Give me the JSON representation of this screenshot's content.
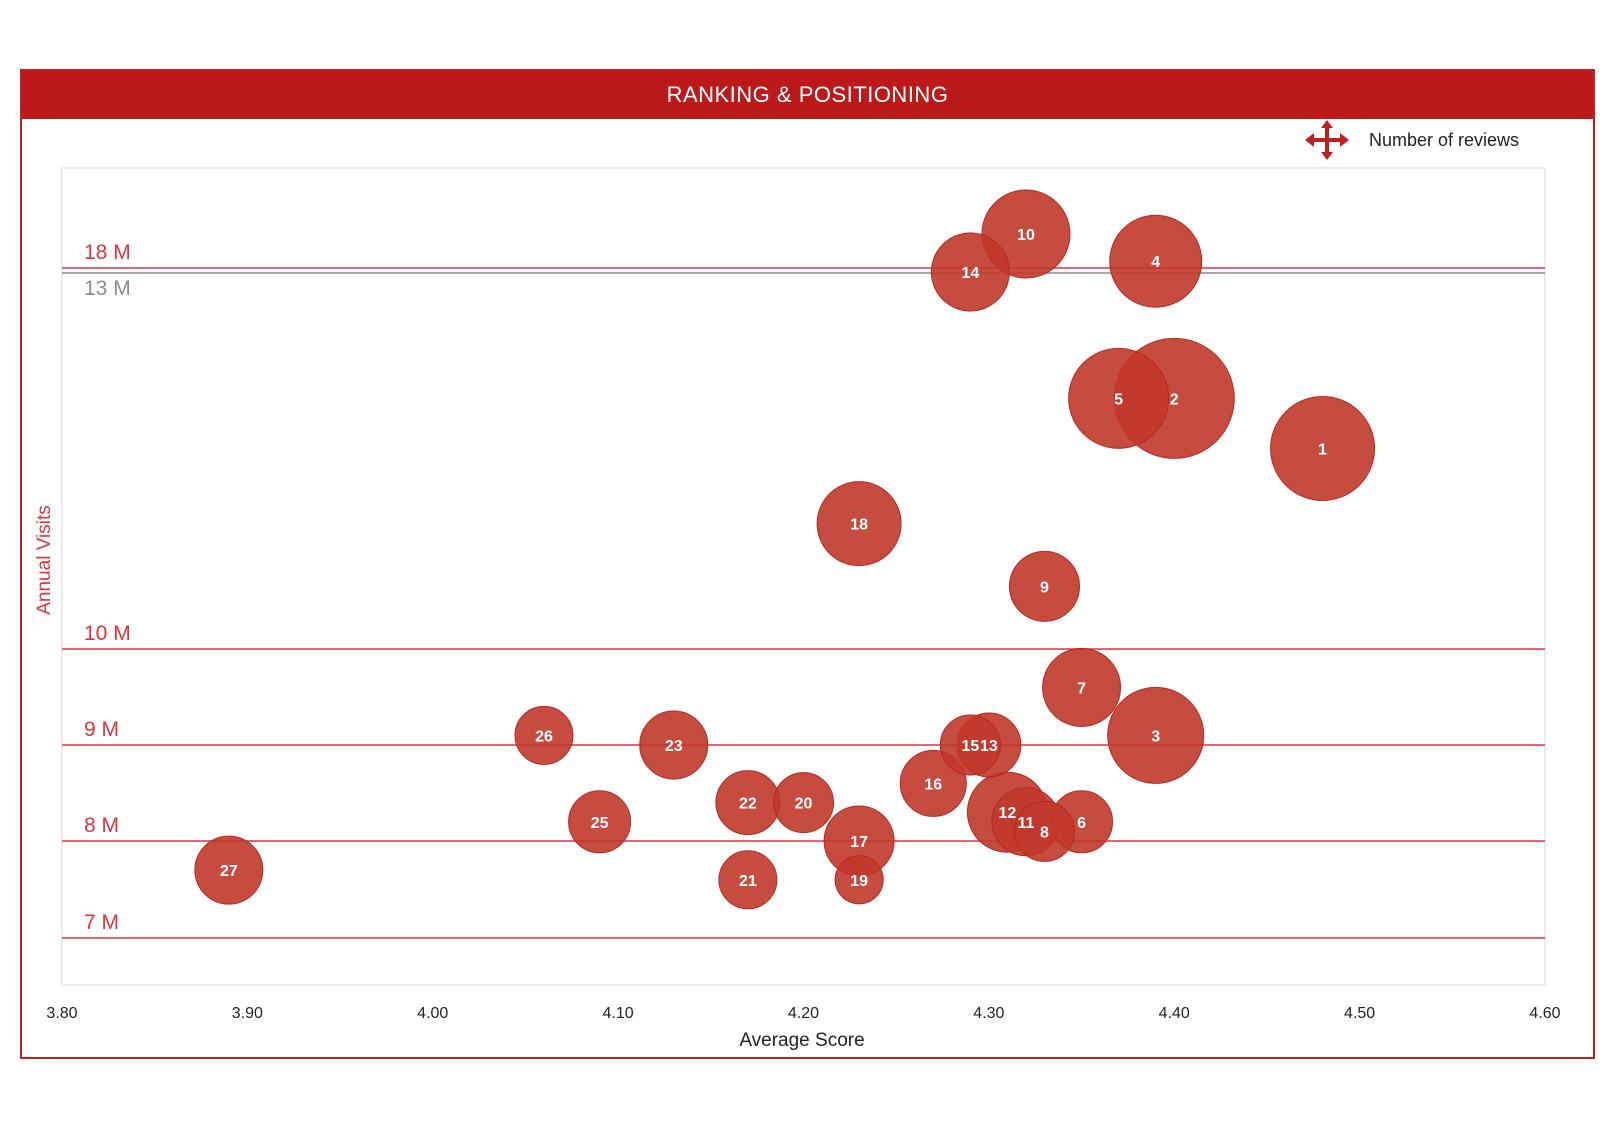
{
  "header": {
    "title": "RANKING & POSITIONING"
  },
  "legend": {
    "label": "Number of reviews",
    "icon": "move-arrows-icon"
  },
  "colors": {
    "accent": "#bc1a1a",
    "bubble_fill": "#c0392b",
    "bubble_stroke": "#b52a20",
    "reference_line": "#d9363e",
    "reference_line_grey": "#8c8c8c"
  },
  "chart_data": {
    "type": "scatter",
    "subtype": "bubble",
    "title": "",
    "xlabel": "Average Score",
    "ylabel": "Annual Visits",
    "x_ticks": [
      "3.80",
      "3.90",
      "4.00",
      "4.10",
      "4.20",
      "4.30",
      "4.40",
      "4.50",
      "4.60"
    ],
    "xlim": [
      3.8,
      4.6
    ],
    "grid": false,
    "legend_position": "top-right",
    "bubble_size_meaning": "Number of reviews",
    "reference_lines": [
      {
        "label": "18 M",
        "level": 18,
        "color": "red"
      },
      {
        "label": "13 M",
        "level": 13,
        "color": "grey"
      },
      {
        "label": "10 M",
        "level": 10,
        "color": "red"
      },
      {
        "label": "9 M",
        "level": 9,
        "color": "red"
      },
      {
        "label": "8 M",
        "level": 8,
        "color": "red"
      },
      {
        "label": "7 M",
        "level": 7,
        "color": "red"
      }
    ],
    "points": [
      {
        "id": "1",
        "x": 4.48,
        "y": 11.6,
        "size": 52
      },
      {
        "id": "2",
        "x": 4.4,
        "y": 12.0,
        "size": 60
      },
      {
        "id": "3",
        "x": 4.39,
        "y": 9.1,
        "size": 48
      },
      {
        "id": "4",
        "x": 4.39,
        "y": 18.1,
        "size": 46
      },
      {
        "id": "5",
        "x": 4.37,
        "y": 12.0,
        "size": 50
      },
      {
        "id": "6",
        "x": 4.35,
        "y": 8.2,
        "size": 31
      },
      {
        "id": "7",
        "x": 4.35,
        "y": 9.6,
        "size": 39
      },
      {
        "id": "8",
        "x": 4.33,
        "y": 8.1,
        "size": 30
      },
      {
        "id": "9",
        "x": 4.33,
        "y": 10.5,
        "size": 35
      },
      {
        "id": "10",
        "x": 4.32,
        "y": 18.5,
        "size": 44
      },
      {
        "id": "11",
        "x": 4.32,
        "y": 8.2,
        "size": 34
      },
      {
        "id": "12",
        "x": 4.31,
        "y": 8.3,
        "size": 40
      },
      {
        "id": "13",
        "x": 4.3,
        "y": 9.0,
        "size": 32
      },
      {
        "id": "14",
        "x": 4.29,
        "y": 14.0,
        "size": 39
      },
      {
        "id": "15",
        "x": 4.29,
        "y": 9.0,
        "size": 30
      },
      {
        "id": "16",
        "x": 4.27,
        "y": 8.6,
        "size": 33
      },
      {
        "id": "17",
        "x": 4.23,
        "y": 8.0,
        "size": 35
      },
      {
        "id": "18",
        "x": 4.23,
        "y": 11.0,
        "size": 42
      },
      {
        "id": "19",
        "x": 4.23,
        "y": 7.6,
        "size": 24
      },
      {
        "id": "20",
        "x": 4.2,
        "y": 8.4,
        "size": 30
      },
      {
        "id": "21",
        "x": 4.17,
        "y": 7.6,
        "size": 29
      },
      {
        "id": "22",
        "x": 4.17,
        "y": 8.4,
        "size": 32
      },
      {
        "id": "23",
        "x": 4.13,
        "y": 9.0,
        "size": 34
      },
      {
        "id": "25",
        "x": 4.09,
        "y": 8.2,
        "size": 31
      },
      {
        "id": "26",
        "x": 4.06,
        "y": 9.1,
        "size": 29
      },
      {
        "id": "27",
        "x": 3.89,
        "y": 7.7,
        "size": 34
      }
    ]
  }
}
